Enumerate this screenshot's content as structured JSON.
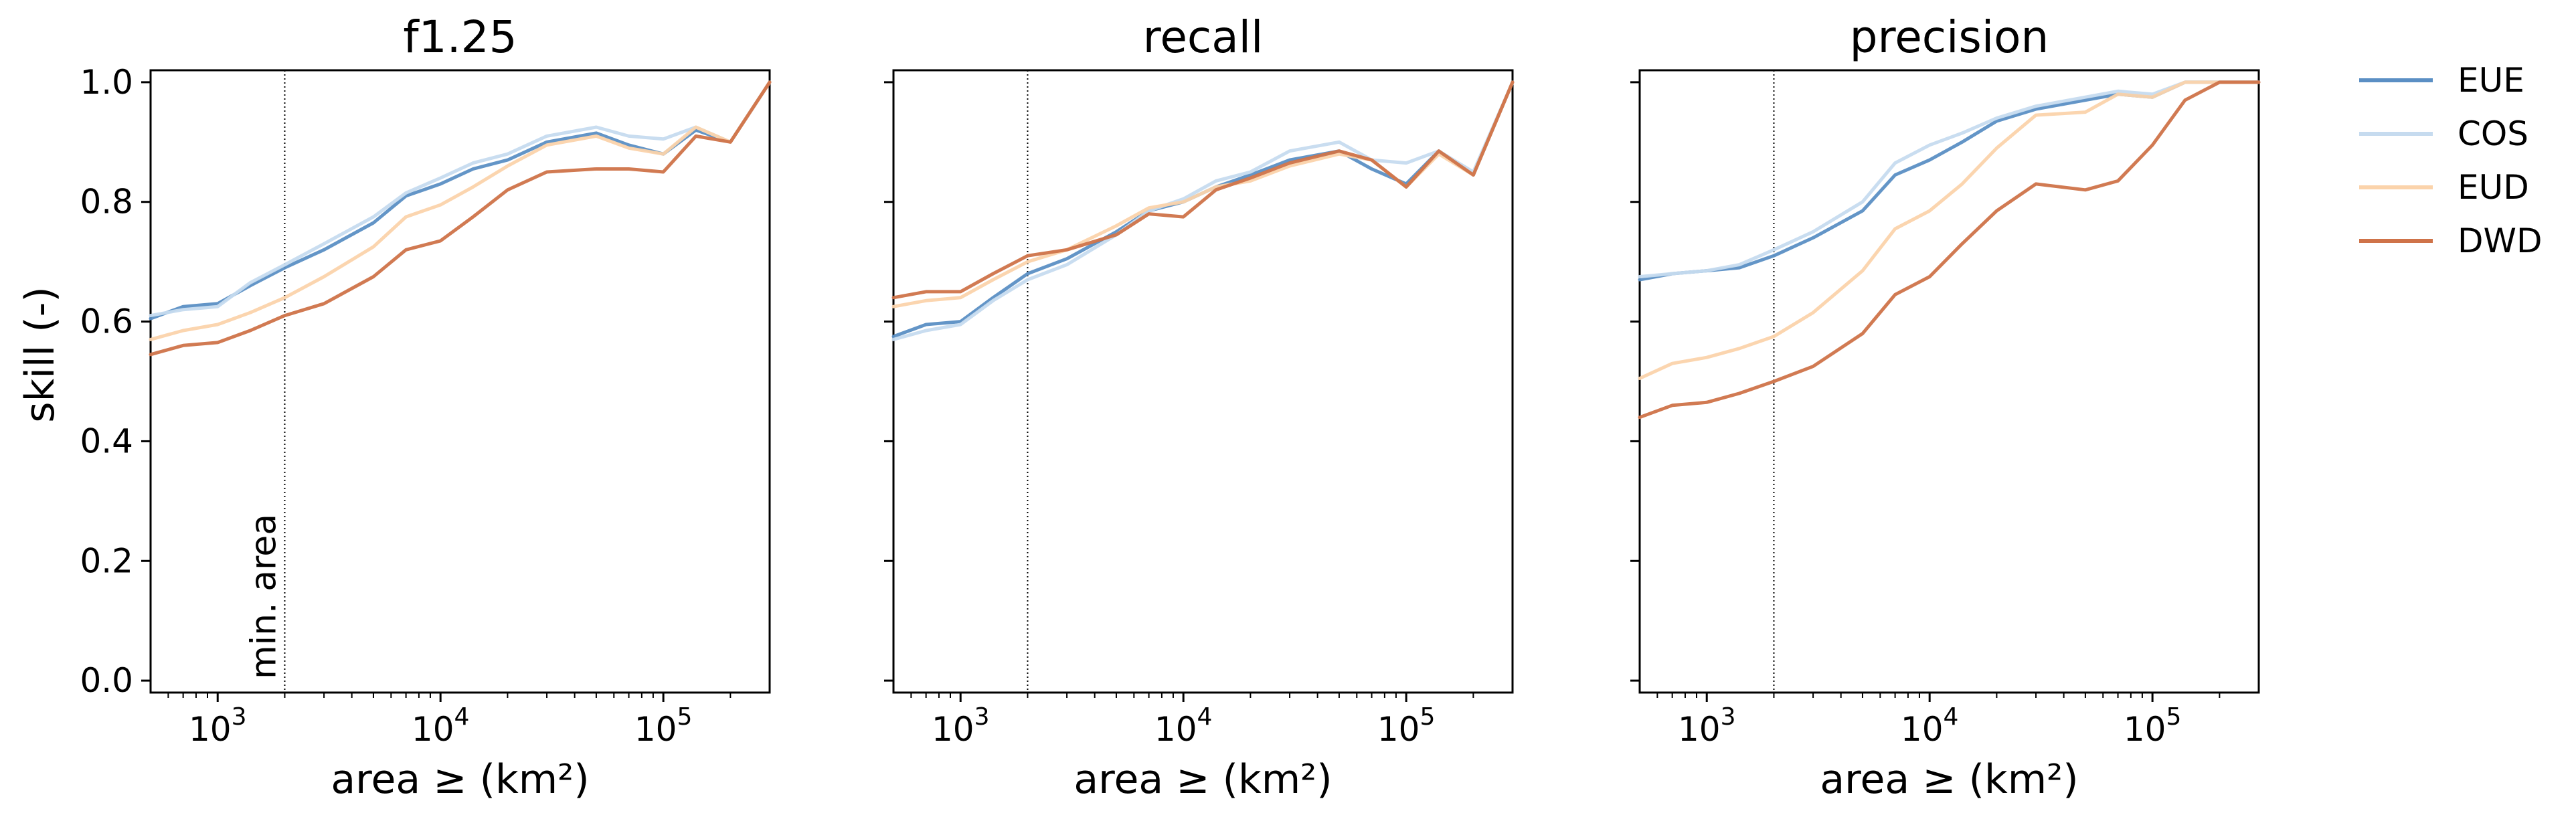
{
  "figure": {
    "ylabel": "skill (-)",
    "xlabel": "area ≥ (km²)",
    "annotation": "min. area",
    "x_scale": "log",
    "x_ticks": [
      {
        "value": 1000,
        "base": "10",
        "exp": "3"
      },
      {
        "value": 10000,
        "base": "10",
        "exp": "4"
      },
      {
        "value": 100000,
        "base": "10",
        "exp": "5"
      }
    ],
    "y_ticks": [
      "0.0",
      "0.2",
      "0.4",
      "0.6",
      "0.8",
      "1.0"
    ],
    "legend_position": "outside-top-right"
  },
  "legend": [
    {
      "name": "EUE",
      "color": "#5b8fc4"
    },
    {
      "name": "COS",
      "color": "#c6dbef"
    },
    {
      "name": "EUD",
      "color": "#fbd3ab"
    },
    {
      "name": "DWD",
      "color": "#cf7349"
    }
  ],
  "chart_data": [
    {
      "type": "line",
      "title": "f1.25",
      "xlim": [
        500,
        300000
      ],
      "ylim": [
        -0.02,
        1.02
      ],
      "vline_x": 2000,
      "x": [
        500,
        700,
        1000,
        1400,
        2000,
        3000,
        5000,
        7000,
        10000,
        14000,
        20000,
        30000,
        50000,
        70000,
        100000,
        140000,
        200000,
        300000
      ],
      "series": [
        {
          "name": "EUE",
          "color": "#5b8fc4",
          "values": [
            0.605,
            0.625,
            0.63,
            0.66,
            0.69,
            0.72,
            0.765,
            0.81,
            0.83,
            0.855,
            0.87,
            0.9,
            0.915,
            0.895,
            0.88,
            0.92,
            0.9,
            1.0
          ]
        },
        {
          "name": "COS",
          "color": "#c6dbef",
          "values": [
            0.61,
            0.62,
            0.625,
            0.665,
            0.695,
            0.73,
            0.775,
            0.815,
            0.84,
            0.865,
            0.88,
            0.91,
            0.925,
            0.91,
            0.905,
            0.925,
            0.9,
            1.0
          ]
        },
        {
          "name": "EUD",
          "color": "#fbd3ab",
          "values": [
            0.57,
            0.585,
            0.595,
            0.615,
            0.64,
            0.675,
            0.725,
            0.775,
            0.795,
            0.825,
            0.86,
            0.895,
            0.91,
            0.89,
            0.88,
            0.925,
            0.9,
            1.0
          ]
        },
        {
          "name": "DWD",
          "color": "#cf7349",
          "values": [
            0.545,
            0.56,
            0.565,
            0.585,
            0.61,
            0.63,
            0.675,
            0.72,
            0.735,
            0.775,
            0.82,
            0.85,
            0.855,
            0.855,
            0.85,
            0.91,
            0.9,
            1.0
          ]
        }
      ]
    },
    {
      "type": "line",
      "title": "recall",
      "xlim": [
        500,
        300000
      ],
      "ylim": [
        -0.02,
        1.02
      ],
      "vline_x": 2000,
      "x": [
        500,
        700,
        1000,
        1400,
        2000,
        3000,
        5000,
        7000,
        10000,
        14000,
        20000,
        30000,
        50000,
        70000,
        100000,
        140000,
        200000,
        300000
      ],
      "series": [
        {
          "name": "EUE",
          "color": "#5b8fc4",
          "values": [
            0.575,
            0.595,
            0.6,
            0.64,
            0.68,
            0.705,
            0.75,
            0.785,
            0.8,
            0.825,
            0.845,
            0.87,
            0.885,
            0.855,
            0.83,
            0.885,
            0.845,
            1.0
          ]
        },
        {
          "name": "COS",
          "color": "#c6dbef",
          "values": [
            0.57,
            0.585,
            0.595,
            0.635,
            0.67,
            0.695,
            0.745,
            0.785,
            0.805,
            0.835,
            0.85,
            0.885,
            0.9,
            0.87,
            0.865,
            0.885,
            0.85,
            1.0
          ]
        },
        {
          "name": "EUD",
          "color": "#fbd3ab",
          "values": [
            0.625,
            0.635,
            0.64,
            0.67,
            0.7,
            0.72,
            0.76,
            0.79,
            0.8,
            0.825,
            0.835,
            0.86,
            0.88,
            0.87,
            0.825,
            0.88,
            0.845,
            1.0
          ]
        },
        {
          "name": "DWD",
          "color": "#cf7349",
          "values": [
            0.64,
            0.65,
            0.65,
            0.68,
            0.71,
            0.72,
            0.745,
            0.78,
            0.775,
            0.82,
            0.84,
            0.865,
            0.885,
            0.87,
            0.825,
            0.885,
            0.845,
            1.0
          ]
        }
      ]
    },
    {
      "type": "line",
      "title": "precision",
      "xlim": [
        500,
        300000
      ],
      "ylim": [
        -0.02,
        1.02
      ],
      "vline_x": 2000,
      "x": [
        500,
        700,
        1000,
        1400,
        2000,
        3000,
        5000,
        7000,
        10000,
        14000,
        20000,
        30000,
        50000,
        70000,
        100000,
        140000,
        200000,
        300000
      ],
      "series": [
        {
          "name": "EUE",
          "color": "#5b8fc4",
          "values": [
            0.67,
            0.68,
            0.685,
            0.69,
            0.71,
            0.74,
            0.785,
            0.845,
            0.87,
            0.9,
            0.935,
            0.955,
            0.97,
            0.98,
            0.975,
            1.0,
            1.0,
            1.0
          ]
        },
        {
          "name": "COS",
          "color": "#c6dbef",
          "values": [
            0.675,
            0.68,
            0.685,
            0.695,
            0.72,
            0.75,
            0.8,
            0.865,
            0.895,
            0.915,
            0.94,
            0.96,
            0.975,
            0.985,
            0.98,
            1.0,
            1.0,
            1.0
          ]
        },
        {
          "name": "EUD",
          "color": "#fbd3ab",
          "values": [
            0.505,
            0.53,
            0.54,
            0.555,
            0.575,
            0.615,
            0.685,
            0.755,
            0.785,
            0.83,
            0.89,
            0.945,
            0.95,
            0.98,
            0.975,
            1.0,
            1.0,
            1.0
          ]
        },
        {
          "name": "DWD",
          "color": "#cf7349",
          "values": [
            0.44,
            0.46,
            0.465,
            0.48,
            0.5,
            0.525,
            0.58,
            0.645,
            0.675,
            0.73,
            0.785,
            0.83,
            0.82,
            0.835,
            0.895,
            0.97,
            1.0,
            1.0
          ]
        }
      ]
    }
  ]
}
